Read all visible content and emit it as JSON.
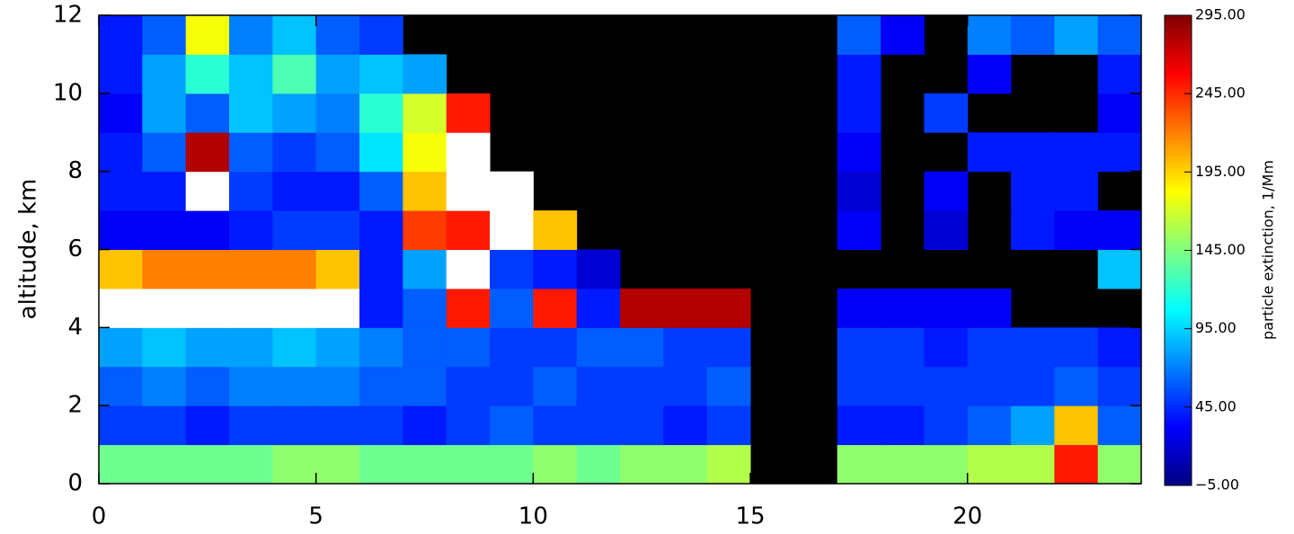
{
  "chart_data": {
    "type": "heatmap",
    "ylabel": "altitude, km",
    "xbins": [
      0,
      1,
      2,
      3,
      4,
      5,
      6,
      7,
      8,
      9,
      10,
      11,
      12,
      13,
      14,
      15,
      16,
      17,
      18,
      19,
      20,
      21,
      22,
      23,
      24
    ],
    "ybins": [
      0,
      1,
      2,
      3,
      4,
      5,
      6,
      7,
      8,
      9,
      10,
      11,
      12
    ],
    "values": [
      [
        140,
        140,
        140,
        140,
        150,
        150,
        140,
        140,
        140,
        140,
        150,
        140,
        150,
        150,
        160,
        null,
        null,
        150,
        150,
        150,
        160,
        160,
        250,
        150
      ],
      [
        50,
        50,
        40,
        50,
        50,
        50,
        50,
        40,
        50,
        60,
        50,
        50,
        50,
        40,
        50,
        null,
        null,
        40,
        40,
        50,
        60,
        80,
        200,
        60
      ],
      [
        60,
        70,
        60,
        70,
        70,
        70,
        60,
        60,
        50,
        50,
        60,
        50,
        50,
        50,
        60,
        null,
        null,
        50,
        50,
        50,
        50,
        50,
        60,
        50
      ],
      [
        80,
        90,
        80,
        80,
        90,
        80,
        70,
        60,
        60,
        50,
        50,
        60,
        60,
        50,
        50,
        null,
        null,
        50,
        50,
        40,
        50,
        50,
        50,
        40
      ],
      [
        320,
        320,
        320,
        320,
        320,
        320,
        40,
        60,
        250,
        60,
        250,
        40,
        280,
        280,
        280,
        null,
        null,
        30,
        30,
        30,
        30,
        null,
        null,
        null
      ],
      [
        200,
        220,
        220,
        220,
        220,
        200,
        40,
        80,
        300,
        50,
        40,
        20,
        null,
        null,
        null,
        null,
        null,
        null,
        null,
        null,
        null,
        null,
        null,
        90
      ],
      [
        30,
        30,
        30,
        40,
        50,
        50,
        40,
        240,
        250,
        320,
        200,
        null,
        null,
        null,
        null,
        null,
        null,
        30,
        null,
        20,
        null,
        40,
        30,
        30
      ],
      [
        40,
        40,
        320,
        50,
        40,
        40,
        60,
        200,
        320,
        320,
        null,
        null,
        null,
        null,
        null,
        null,
        null,
        20,
        null,
        30,
        null,
        40,
        40,
        null
      ],
      [
        40,
        60,
        280,
        60,
        50,
        60,
        100,
        180,
        320,
        null,
        null,
        null,
        null,
        null,
        null,
        null,
        null,
        30,
        null,
        null,
        40,
        40,
        40,
        40
      ],
      [
        30,
        80,
        60,
        90,
        80,
        70,
        120,
        170,
        250,
        null,
        null,
        null,
        null,
        null,
        null,
        null,
        null,
        40,
        null,
        50,
        null,
        null,
        null,
        30
      ],
      [
        40,
        80,
        120,
        90,
        130,
        80,
        90,
        80,
        null,
        null,
        null,
        null,
        null,
        null,
        null,
        null,
        null,
        40,
        null,
        null,
        30,
        null,
        null,
        40
      ],
      [
        40,
        60,
        180,
        70,
        90,
        60,
        50,
        null,
        null,
        null,
        null,
        null,
        null,
        null,
        null,
        null,
        null,
        60,
        30,
        null,
        70,
        60,
        80,
        60
      ]
    ],
    "xlim": [
      0,
      24
    ],
    "xticks": [
      0,
      5,
      10,
      15,
      20
    ],
    "ylim": [
      0,
      12
    ],
    "yticks": [
      0,
      2,
      4,
      6,
      8,
      10,
      12
    ],
    "colorbar": {
      "label": "particle extinction, 1/Mm",
      "lim": [
        -5,
        295
      ],
      "ticks": [
        {
          "value": -5,
          "label": "−5.00"
        },
        {
          "value": 45,
          "label": "45.00"
        },
        {
          "value": 95,
          "label": "95.00"
        },
        {
          "value": 145,
          "label": "145.00"
        },
        {
          "value": 195,
          "label": "195.00"
        },
        {
          "value": 245,
          "label": "245.00"
        },
        {
          "value": 295,
          "label": "295.00"
        }
      ],
      "colors": [
        "#00007f",
        "#0000ff",
        "#007fff",
        "#00ffff",
        "#7fff7f",
        "#ffff00",
        "#ff7f00",
        "#ff0000",
        "#7f0000"
      ],
      "over_color": "#ffffff",
      "missing_color": "#000000"
    }
  }
}
